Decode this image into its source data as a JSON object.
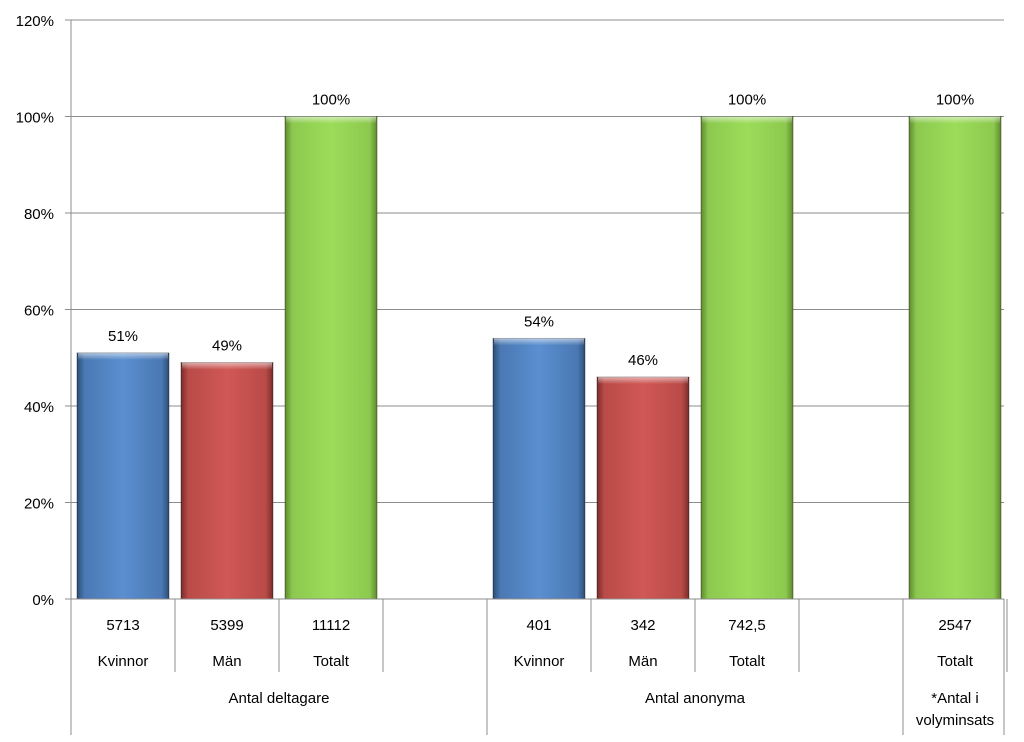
{
  "chart_data": {
    "type": "bar",
    "ylim": [
      0,
      120
    ],
    "y_ticks": [
      "0%",
      "20%",
      "40%",
      "60%",
      "80%",
      "100%",
      "120%"
    ],
    "grid": true,
    "legend": "none",
    "colors": {
      "Kvinnor": "#4f81bd",
      "Män": "#c0504d",
      "Totalt": "#92d050"
    },
    "groups": [
      {
        "label": "Antal deltagare",
        "bars": [
          {
            "category": "Kvinnor",
            "count": "5713",
            "value": 51,
            "data_label": "51%"
          },
          {
            "category": "Män",
            "count": "5399",
            "value": 49,
            "data_label": "49%"
          },
          {
            "category": "Totalt",
            "count": "11112",
            "value": 100,
            "data_label": "100%"
          }
        ]
      },
      {
        "label": "Antal anonyma",
        "bars": [
          {
            "category": "Kvinnor",
            "count": "401",
            "value": 54,
            "data_label": "54%"
          },
          {
            "category": "Män",
            "count": "342",
            "value": 46,
            "data_label": "46%"
          },
          {
            "category": "Totalt",
            "count": "742,5",
            "value": 100,
            "data_label": "100%"
          }
        ]
      },
      {
        "label": "*Antal i volyminsats",
        "bars": [
          {
            "category": "Totalt",
            "count": "2547",
            "value": 100,
            "data_label": "100%"
          }
        ]
      }
    ]
  }
}
